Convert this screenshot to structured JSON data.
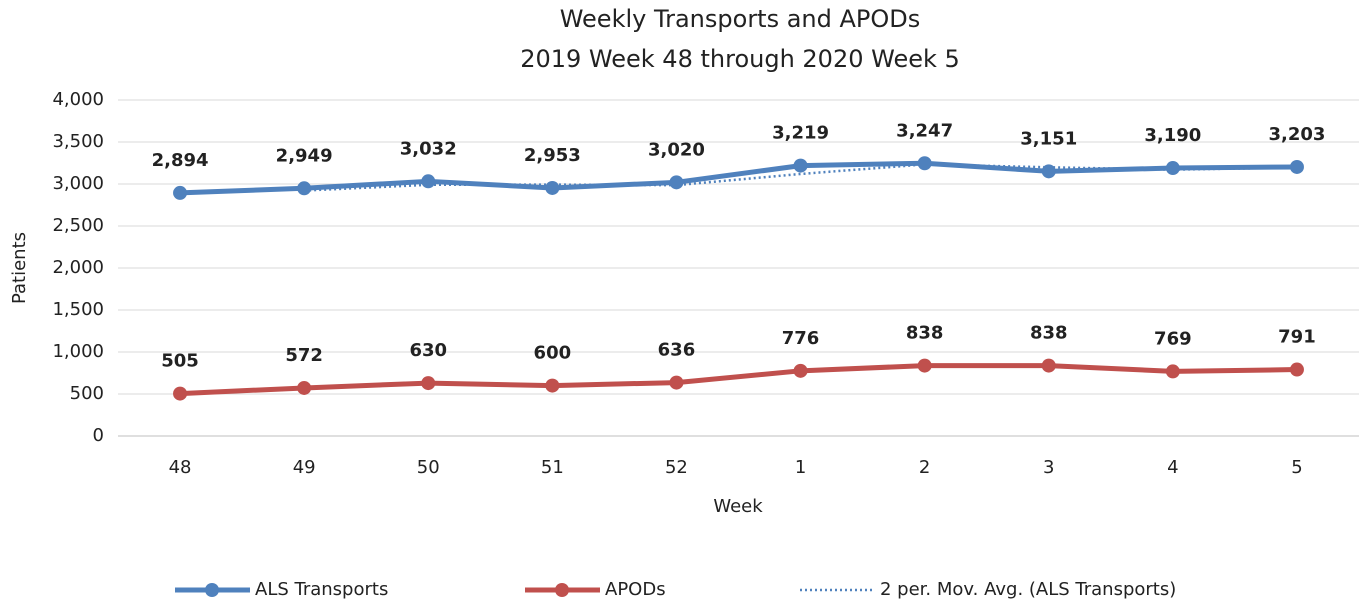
{
  "chart_data": {
    "type": "line",
    "title": "Weekly Transports and APODs",
    "subtitle": "2019 Week 48 through 2020 Week 5",
    "x_label": "Week",
    "y_label": "Patients",
    "categories": [
      "48",
      "49",
      "50",
      "51",
      "52",
      "1",
      "2",
      "3",
      "4",
      "5"
    ],
    "series": [
      {
        "name": "ALS Transports",
        "color": "#4f81bd",
        "style": "solid",
        "markers": true,
        "values": [
          2894,
          2949,
          3032,
          2953,
          3020,
          3219,
          3247,
          3151,
          3190,
          3203
        ],
        "value_labels": [
          "2,894",
          "2,949",
          "3,032",
          "2,953",
          "3,020",
          "3,219",
          "3,247",
          "3,151",
          "3,190",
          "3,203"
        ]
      },
      {
        "name": "APODs",
        "color": "#c0504d",
        "style": "solid",
        "markers": true,
        "values": [
          505,
          572,
          630,
          600,
          636,
          776,
          838,
          838,
          769,
          791
        ],
        "value_labels": [
          "505",
          "572",
          "630",
          "600",
          "636",
          "776",
          "838",
          "838",
          "769",
          "791"
        ]
      },
      {
        "name": "2 per. Mov. Avg. (ALS Transports)",
        "color": "#4f81bd",
        "style": "dotted",
        "markers": false,
        "values": [
          null,
          2921.5,
          2990.5,
          2992.5,
          2986.5,
          3119.5,
          3233,
          3199,
          3170.5,
          3196.5
        ]
      }
    ],
    "ylim": [
      0,
      4000
    ],
    "yticks": [
      0,
      500,
      {
        "value": 1000,
        "label": "1,000"
      },
      {
        "value": 1500,
        "label": "1,500"
      },
      {
        "value": 2000,
        "label": "2,000"
      },
      {
        "value": 2500,
        "label": "2,500"
      },
      {
        "value": 3000,
        "label": "3,000"
      },
      {
        "value": 3500,
        "label": "3,500"
      },
      {
        "value": 4000,
        "label": "4,000"
      }
    ],
    "grid": true,
    "legend": "bottom"
  }
}
